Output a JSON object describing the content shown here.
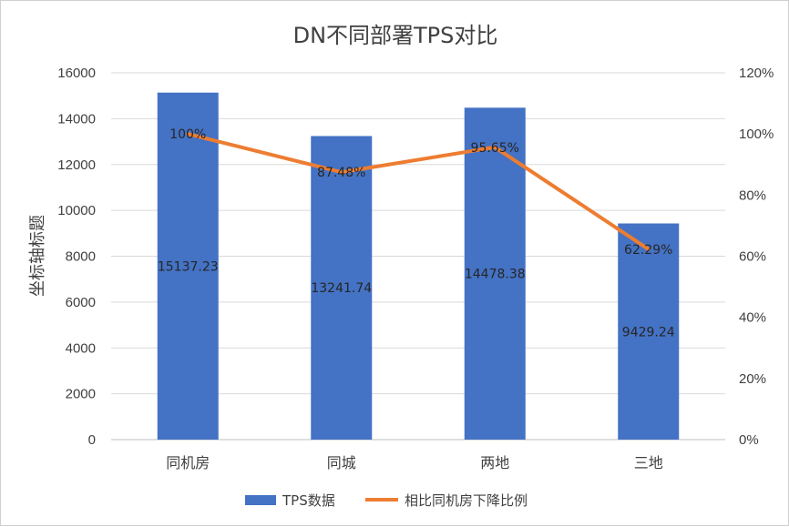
{
  "chart_data": {
    "type": "bar",
    "title": "DN不同部署TPS对比",
    "ylabel": "坐标轴标题",
    "categories": [
      "同机房",
      "同城",
      "两地",
      "三地"
    ],
    "series": [
      {
        "name": "TPS数据",
        "type": "bar",
        "axis": "left",
        "color": "#4472C4",
        "values": [
          15137.23,
          13241.74,
          14478.38,
          9429.24
        ],
        "labels": [
          "15137.23",
          "13241.74",
          "14478.38",
          "9429.24"
        ]
      },
      {
        "name": "相比同机房下降比例",
        "type": "line",
        "axis": "right",
        "color": "#ED7D31",
        "values": [
          1.0,
          0.8748,
          0.9565,
          0.6229
        ],
        "labels": [
          "100%",
          "87.48%",
          "95.65%",
          "62.29%"
        ]
      }
    ],
    "ylim": [
      0,
      16000
    ],
    "y_ticks": [
      "0",
      "2000",
      "4000",
      "6000",
      "8000",
      "10000",
      "12000",
      "14000",
      "16000"
    ],
    "y2lim": [
      0,
      1.2
    ],
    "y2_ticks": [
      "0%",
      "20%",
      "40%",
      "60%",
      "80%",
      "100%",
      "120%"
    ],
    "grid": true,
    "legend": "bottom"
  }
}
